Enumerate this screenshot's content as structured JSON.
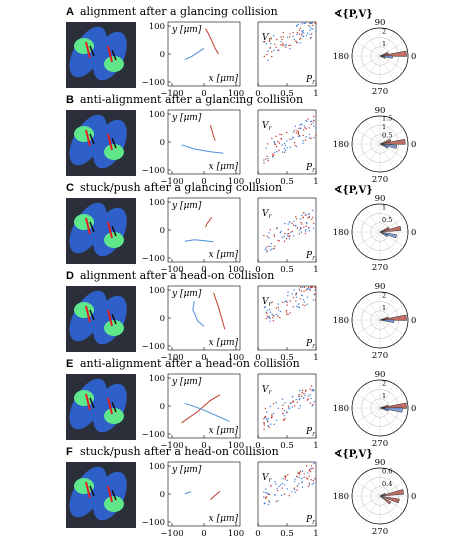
{
  "figure": {
    "panels": [
      {
        "letter": "A",
        "title": "alignment after a glancing collision",
        "polar_title": "∢{P,V}",
        "polar_rlabels": [
          "1",
          "2"
        ],
        "traj": [
          {
            "color": "red",
            "pts": [
              [
                5,
                90
              ],
              [
                15,
                70
              ],
              [
                25,
                45
              ],
              [
                35,
                20
              ],
              [
                45,
                0
              ]
            ]
          },
          {
            "color": "blue",
            "pts": [
              [
                -60,
                -20
              ],
              [
                -40,
                -10
              ],
              [
                -20,
                5
              ],
              [
                0,
                20
              ]
            ]
          }
        ],
        "scatter_level": 0.75,
        "rose": [
          {
            "color": "red",
            "angle": 5,
            "r": 0.95
          },
          {
            "color": "blue",
            "angle": -5,
            "r": 0.45
          },
          {
            "color": "red",
            "angle": 20,
            "r": 0.3
          },
          {
            "color": "blue",
            "angle": -20,
            "r": 0.2
          }
        ]
      },
      {
        "letter": "B",
        "title": "anti-alignment after a glancing collision",
        "polar_title": "",
        "polar_rlabels": [
          "0.5",
          "1",
          "1.5"
        ],
        "traj": [
          {
            "color": "red",
            "pts": [
              [
                20,
                60
              ],
              [
                25,
                40
              ],
              [
                30,
                20
              ],
              [
                35,
                5
              ]
            ]
          },
          {
            "color": "blue",
            "pts": [
              [
                -70,
                -10
              ],
              [
                -30,
                -25
              ],
              [
                20,
                -35
              ],
              [
                60,
                -40
              ]
            ]
          }
        ],
        "scatter_level": 0.55,
        "rose": [
          {
            "color": "red",
            "angle": 5,
            "r": 0.9
          },
          {
            "color": "blue",
            "angle": -10,
            "r": 0.6
          },
          {
            "color": "red",
            "angle": 20,
            "r": 0.4
          },
          {
            "color": "blue",
            "angle": -25,
            "r": 0.3
          }
        ]
      },
      {
        "letter": "C",
        "title": "stuck/push after a glancing collision",
        "polar_title": "∢{P,V}",
        "polar_rlabels": [
          "0.5",
          "1"
        ],
        "traj": [
          {
            "color": "red",
            "pts": [
              [
                5,
                10
              ],
              [
                10,
                25
              ],
              [
                15,
                30
              ],
              [
                20,
                40
              ],
              [
                25,
                45
              ]
            ]
          },
          {
            "color": "blue",
            "pts": [
              [
                -60,
                -40
              ],
              [
                -30,
                -35
              ],
              [
                0,
                -38
              ],
              [
                30,
                -42
              ]
            ]
          }
        ],
        "scatter_level": 0.5,
        "rose": [
          {
            "color": "red",
            "angle": 10,
            "r": 0.75
          },
          {
            "color": "blue",
            "angle": -15,
            "r": 0.6
          },
          {
            "color": "red",
            "angle": 25,
            "r": 0.35
          },
          {
            "color": "blue",
            "angle": -30,
            "r": 0.3
          }
        ]
      },
      {
        "letter": "D",
        "title": "alignment after a head-on collision",
        "polar_title": "",
        "polar_rlabels": [
          "1",
          "2"
        ],
        "traj": [
          {
            "color": "red",
            "pts": [
              [
                30,
                90
              ],
              [
                45,
                40
              ],
              [
                55,
                0
              ],
              [
                65,
                -40
              ]
            ]
          },
          {
            "color": "blue",
            "pts": [
              [
                -30,
                60
              ],
              [
                -35,
                30
              ],
              [
                -20,
                -10
              ],
              [
                0,
                -30
              ]
            ]
          }
        ],
        "scatter_level": 0.75,
        "rose": [
          {
            "color": "red",
            "angle": 5,
            "r": 0.95
          },
          {
            "color": "blue",
            "angle": -5,
            "r": 0.5
          },
          {
            "color": "red",
            "angle": 15,
            "r": 0.3
          }
        ]
      },
      {
        "letter": "E",
        "title": "anti-alignment after a head-on collision",
        "polar_title": "",
        "polar_rlabels": [
          "1",
          "2"
        ],
        "traj": [
          {
            "color": "red",
            "pts": [
              [
                -70,
                -60
              ],
              [
                -20,
                -20
              ],
              [
                20,
                20
              ],
              [
                50,
                40
              ]
            ]
          },
          {
            "color": "blue",
            "pts": [
              [
                -60,
                10
              ],
              [
                -10,
                -10
              ],
              [
                40,
                -35
              ],
              [
                80,
                -55
              ]
            ]
          }
        ],
        "scatter_level": 0.5,
        "rose": [
          {
            "color": "red",
            "angle": 5,
            "r": 0.95
          },
          {
            "color": "blue",
            "angle": -5,
            "r": 0.8
          },
          {
            "color": "red",
            "angle": 15,
            "r": 0.3
          },
          {
            "color": "blue",
            "angle": -15,
            "r": 0.3
          }
        ]
      },
      {
        "letter": "F",
        "title": "stuck/push after a head-on collision",
        "polar_title": "∢{P,V}",
        "polar_rlabels": [
          "0.4",
          "0.6"
        ],
        "traj": [
          {
            "color": "red",
            "pts": [
              [
                20,
                -20
              ],
              [
                30,
                -10
              ],
              [
                40,
                0
              ],
              [
                50,
                10
              ]
            ]
          },
          {
            "color": "blue",
            "pts": [
              [
                -60,
                0
              ],
              [
                -50,
                5
              ],
              [
                -40,
                8
              ]
            ]
          }
        ],
        "scatter_level": 0.65,
        "rose": [
          {
            "color": "red",
            "angle": 10,
            "r": 0.85
          },
          {
            "color": "red",
            "angle": -15,
            "r": 0.7
          },
          {
            "color": "red",
            "angle": -35,
            "r": 0.45
          },
          {
            "color": "blue",
            "angle": 25,
            "r": 0.2
          }
        ]
      }
    ],
    "traj_axes": {
      "ylabel": "y [μm]",
      "xlabel": "x [μm]",
      "yticks": [
        "100",
        "0",
        "−100"
      ],
      "xticks": [
        "−100",
        "0",
        "100"
      ]
    },
    "scatter_axes": {
      "ylabel": "V_r",
      "xlabel": "P_r",
      "xticks": [
        "0",
        "0.5",
        "1"
      ]
    },
    "polar_axes": {
      "angles": [
        "90",
        "180",
        "0",
        "270"
      ]
    }
  }
}
